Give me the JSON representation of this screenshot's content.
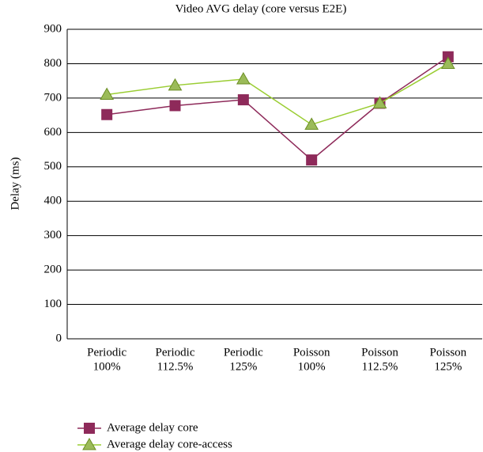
{
  "chart_data": {
    "type": "line",
    "title": "Video AVG delay (core versus E2E)",
    "y_label": "Delay (ms)",
    "categories": [
      [
        "Periodic",
        "100%"
      ],
      [
        "Periodic",
        "112.5%"
      ],
      [
        "Periodic",
        "125%"
      ],
      [
        "Poisson",
        "100%"
      ],
      [
        "Poisson",
        "112.5%"
      ],
      [
        "Poisson",
        "125%"
      ]
    ],
    "series": [
      {
        "name": "Average delay core",
        "color": "#8e2a5a",
        "marker": "square",
        "values": [
          652,
          678,
          695,
          520,
          685,
          820
        ]
      },
      {
        "name": "Average delay core-access",
        "color": "#9acd32",
        "marker": "triangle",
        "values": [
          710,
          737,
          755,
          623,
          685,
          800
        ]
      }
    ],
    "ylim": [
      0,
      900
    ],
    "yticks": [
      0,
      100,
      200,
      300,
      400,
      500,
      600,
      700,
      800,
      900
    ],
    "grid": true
  }
}
